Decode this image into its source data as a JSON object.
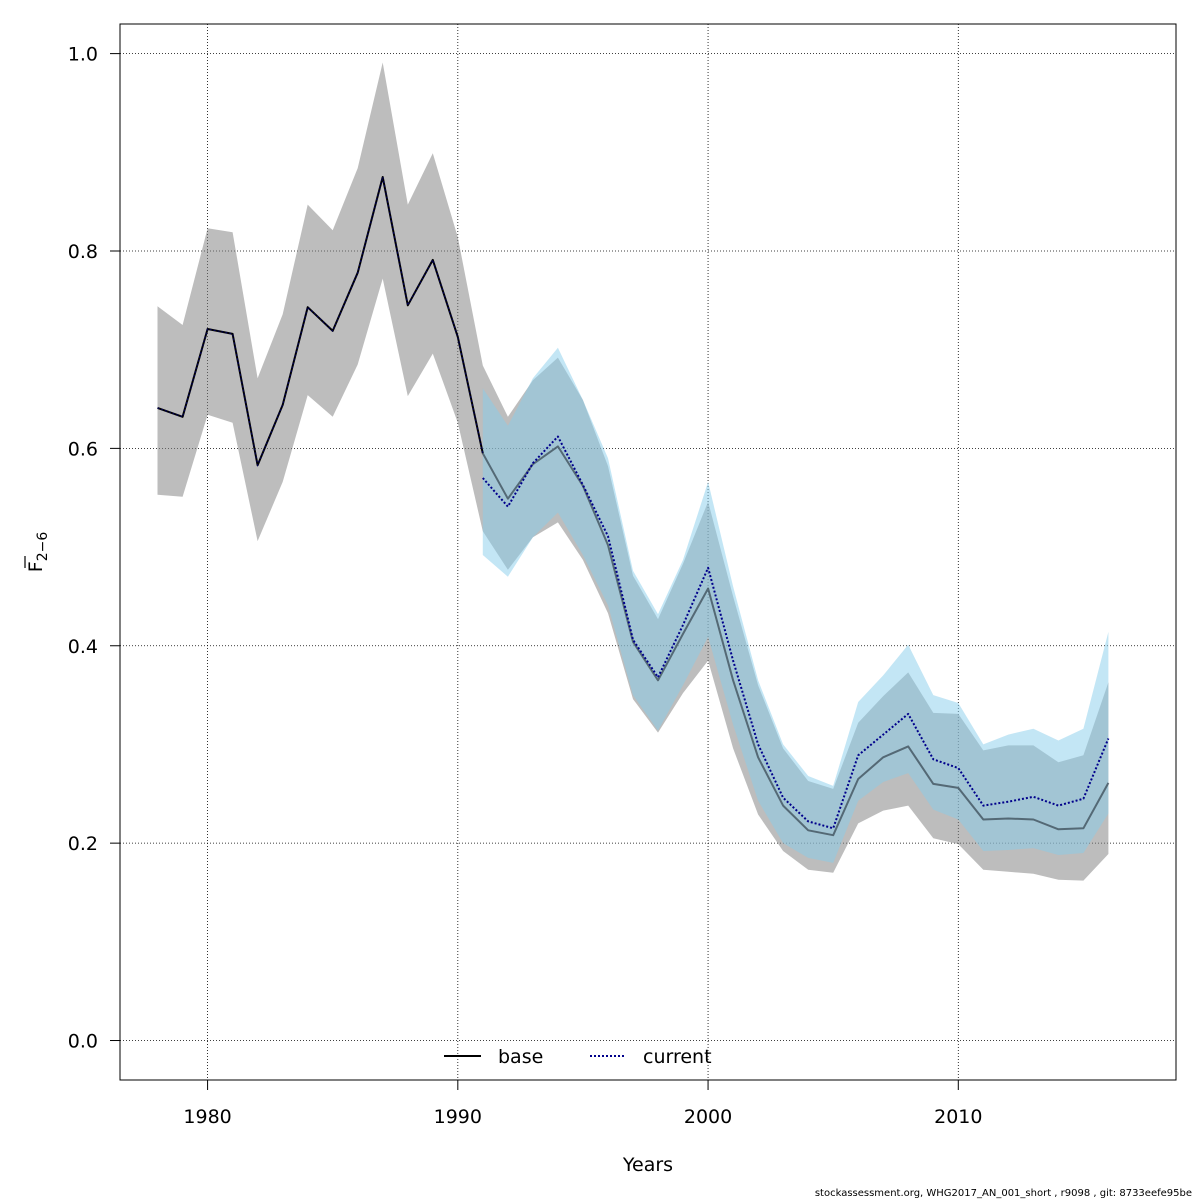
{
  "chart_data": {
    "type": "line",
    "xlabel": "Years",
    "ylabel": "F",
    "ylabel_sub": "2−6",
    "xlim": [
      1976.5,
      2018.7
    ],
    "ylim": [
      -0.04,
      1.03
    ],
    "x_ticks": [
      1980,
      1990,
      2000,
      2010
    ],
    "y_ticks": [
      0.0,
      0.2,
      0.4,
      0.6,
      0.8,
      1.0
    ],
    "x_tick_labels": [
      "1980",
      "1990",
      "2000",
      "2010"
    ],
    "y_tick_labels": [
      "0.0",
      "0.2",
      "0.4",
      "0.6",
      "0.8",
      "1.0"
    ],
    "grid": true,
    "legend_position": "bottom",
    "series": [
      {
        "name": "base",
        "color": "#000000",
        "band_color": "#808080",
        "x": [
          1978,
          1979,
          1980,
          1981,
          1982,
          1983,
          1984,
          1985,
          1986,
          1987,
          1988,
          1989,
          1990,
          1991,
          1992,
          1993,
          1994,
          1995,
          1996,
          1997,
          1998,
          1999,
          2000,
          2001,
          2002,
          2003,
          2004,
          2005,
          2006,
          2007,
          2008,
          2009,
          2010,
          2011,
          2012,
          2013,
          2014,
          2015,
          2016
        ],
        "values": [
          0.641,
          0.632,
          0.721,
          0.716,
          0.583,
          0.644,
          0.743,
          0.719,
          0.778,
          0.875,
          0.745,
          0.791,
          0.713,
          0.595,
          0.549,
          0.584,
          0.602,
          0.562,
          0.502,
          0.404,
          0.365,
          0.412,
          0.458,
          0.365,
          0.287,
          0.238,
          0.213,
          0.208,
          0.265,
          0.287,
          0.298,
          0.26,
          0.256,
          0.224,
          0.225,
          0.224,
          0.214,
          0.215,
          0.261
        ],
        "lower": [
          0.553,
          0.551,
          0.634,
          0.626,
          0.506,
          0.566,
          0.654,
          0.632,
          0.685,
          0.772,
          0.653,
          0.696,
          0.626,
          0.516,
          0.477,
          0.51,
          0.525,
          0.487,
          0.433,
          0.346,
          0.312,
          0.352,
          0.385,
          0.296,
          0.229,
          0.192,
          0.173,
          0.17,
          0.22,
          0.233,
          0.238,
          0.205,
          0.199,
          0.173,
          0.171,
          0.169,
          0.163,
          0.162,
          0.189
        ],
        "upper": [
          0.744,
          0.725,
          0.823,
          0.819,
          0.671,
          0.736,
          0.847,
          0.821,
          0.884,
          0.991,
          0.847,
          0.899,
          0.814,
          0.684,
          0.632,
          0.669,
          0.692,
          0.649,
          0.582,
          0.471,
          0.427,
          0.483,
          0.546,
          0.45,
          0.36,
          0.296,
          0.263,
          0.255,
          0.322,
          0.349,
          0.373,
          0.332,
          0.331,
          0.294,
          0.299,
          0.299,
          0.282,
          0.289,
          0.363
        ]
      },
      {
        "name": "current",
        "color": "#00008b",
        "band_color": "#87ceeb",
        "x": [
          1991,
          1992,
          1993,
          1994,
          1995,
          1996,
          1997,
          1998,
          1999,
          2000,
          2001,
          2002,
          2003,
          2004,
          2005,
          2006,
          2007,
          2008,
          2009,
          2010,
          2011,
          2012,
          2013,
          2014,
          2015,
          2016
        ],
        "values": [
          0.57,
          0.541,
          0.585,
          0.612,
          0.563,
          0.511,
          0.406,
          0.368,
          0.421,
          0.479,
          0.385,
          0.3,
          0.246,
          0.222,
          0.215,
          0.289,
          0.31,
          0.331,
          0.285,
          0.276,
          0.238,
          0.242,
          0.247,
          0.238,
          0.245,
          0.306
        ],
        "lower": [
          0.492,
          0.47,
          0.51,
          0.535,
          0.492,
          0.441,
          0.35,
          0.314,
          0.36,
          0.409,
          0.32,
          0.243,
          0.2,
          0.185,
          0.18,
          0.243,
          0.262,
          0.271,
          0.234,
          0.224,
          0.192,
          0.193,
          0.195,
          0.188,
          0.19,
          0.23
        ],
        "upper": [
          0.661,
          0.623,
          0.671,
          0.702,
          0.649,
          0.59,
          0.476,
          0.432,
          0.487,
          0.566,
          0.46,
          0.365,
          0.3,
          0.268,
          0.258,
          0.343,
          0.37,
          0.401,
          0.35,
          0.342,
          0.3,
          0.31,
          0.316,
          0.304,
          0.316,
          0.414
        ]
      }
    ]
  },
  "footer": "stockassessment.org, WHG2017_AN_001_short , r9098 , git: 8733eefe95be"
}
